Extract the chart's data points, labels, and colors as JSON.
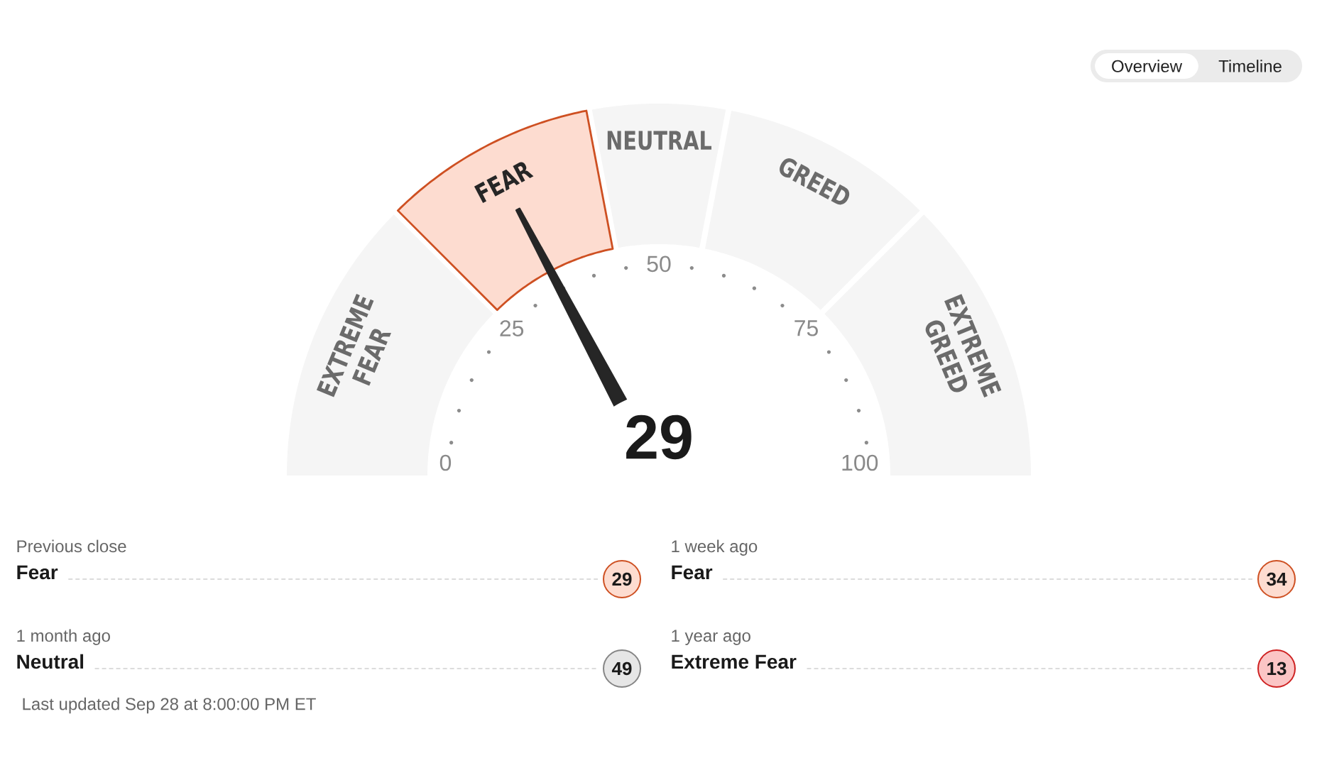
{
  "chart_data": [
    {
      "type": "other",
      "categories": [
        "Overview",
        "Timeline"
      ]
    },
    {
      "type": "donut",
      "categories": [
        "EXTREME GREED",
        "GREED",
        "NEUTRAL",
        "FEAR",
        "EXTREME FEAR"
      ],
      "values": [
        25,
        19,
        12,
        19,
        25
      ],
      "colors": [
        "#f5f5f5",
        "#f5f5f5",
        "#f5f5f5",
        "#fddcd0",
        "#f5f5f5"
      ],
      "needle": "FEAR",
      "annotations": [
        "29",
        "0",
        "25",
        "50",
        "75",
        "100"
      ]
    },
    {
      "type": "other",
      "categories": [
        "Previous close"
      ],
      "y_categories": [
        "Fear"
      ],
      "values": [
        29
      ],
      "colors": [
        "#fddcd0"
      ],
      "data_labels": true
    },
    {
      "type": "other",
      "categories": [
        "1 week ago"
      ],
      "y_categories": [
        "Fear"
      ],
      "values": [
        34
      ],
      "colors": [
        "#fddcd0"
      ],
      "data_labels": true
    },
    {
      "type": "other",
      "categories": [
        "1 month ago"
      ],
      "y_categories": [
        "Neutral"
      ],
      "values": [
        49
      ],
      "colors": [
        "#e6e6e6"
      ],
      "data_labels": true
    },
    {
      "type": "other",
      "categories": [
        "1 year ago"
      ],
      "y_categories": [
        "Extreme Fear"
      ],
      "values": [
        13
      ],
      "colors": [
        "#fbc5c5"
      ],
      "data_labels": true
    },
    {
      "type": "other",
      "annotations": [
        "Last updated Sep 28 at 8:00:00 PM ET"
      ]
    }
  ]
}
